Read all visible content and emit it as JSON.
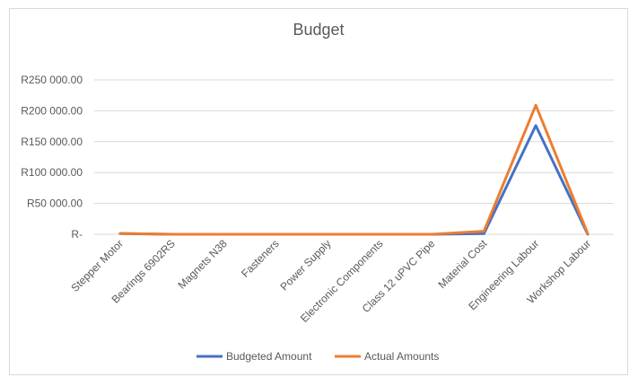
{
  "chart_data": {
    "type": "line",
    "title": "Budget",
    "xlabel": "",
    "ylabel": "",
    "categories": [
      "Stepper Motor",
      "Bearings 6902RS",
      "Magnets N38",
      "Fasteners",
      "Power Supply",
      "Electronic Components",
      "Class 12 uPVC Pipe",
      "Material Cost",
      "Engineering Labour",
      "Workshop Labour"
    ],
    "series": [
      {
        "name": "Budgeted Amount",
        "color": "#4472c4",
        "values": [
          1000,
          0,
          0,
          0,
          0,
          0,
          0,
          1000,
          176000,
          0
        ]
      },
      {
        "name": "Actual Amounts",
        "color": "#ed7d31",
        "values": [
          1500,
          0,
          0,
          0,
          0,
          0,
          0,
          5000,
          209000,
          1000
        ]
      }
    ],
    "ylim": [
      0,
      250000
    ],
    "yticks": [
      0,
      50000,
      100000,
      150000,
      200000,
      250000
    ],
    "ytick_labels": [
      "R-",
      "R50 000.00",
      "R100 000.00",
      "R150 000.00",
      "R200 000.00",
      "R250 000.00"
    ],
    "grid": true,
    "legend_position": "bottom"
  }
}
